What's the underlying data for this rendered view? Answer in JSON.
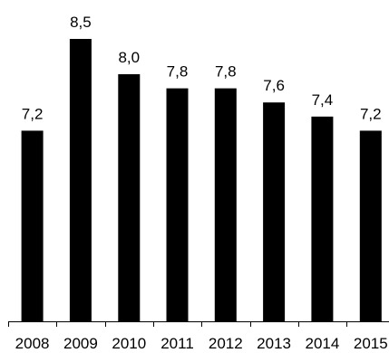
{
  "chart_data": {
    "type": "bar",
    "categories": [
      "2008",
      "2009",
      "2010",
      "2011",
      "2012",
      "2013",
      "2014",
      "2015"
    ],
    "values": [
      7.2,
      8.5,
      8.0,
      7.8,
      7.8,
      7.6,
      7.4,
      7.2
    ],
    "value_labels": [
      "7,2",
      "8,5",
      "8,0",
      "7,8",
      "7,8",
      "7,6",
      "7,4",
      "7,2"
    ],
    "title": "",
    "xlabel": "",
    "ylabel": "",
    "ylim": [
      4.5,
      8.5
    ],
    "grid": false,
    "legend": "none",
    "bar_color": "#000000"
  }
}
